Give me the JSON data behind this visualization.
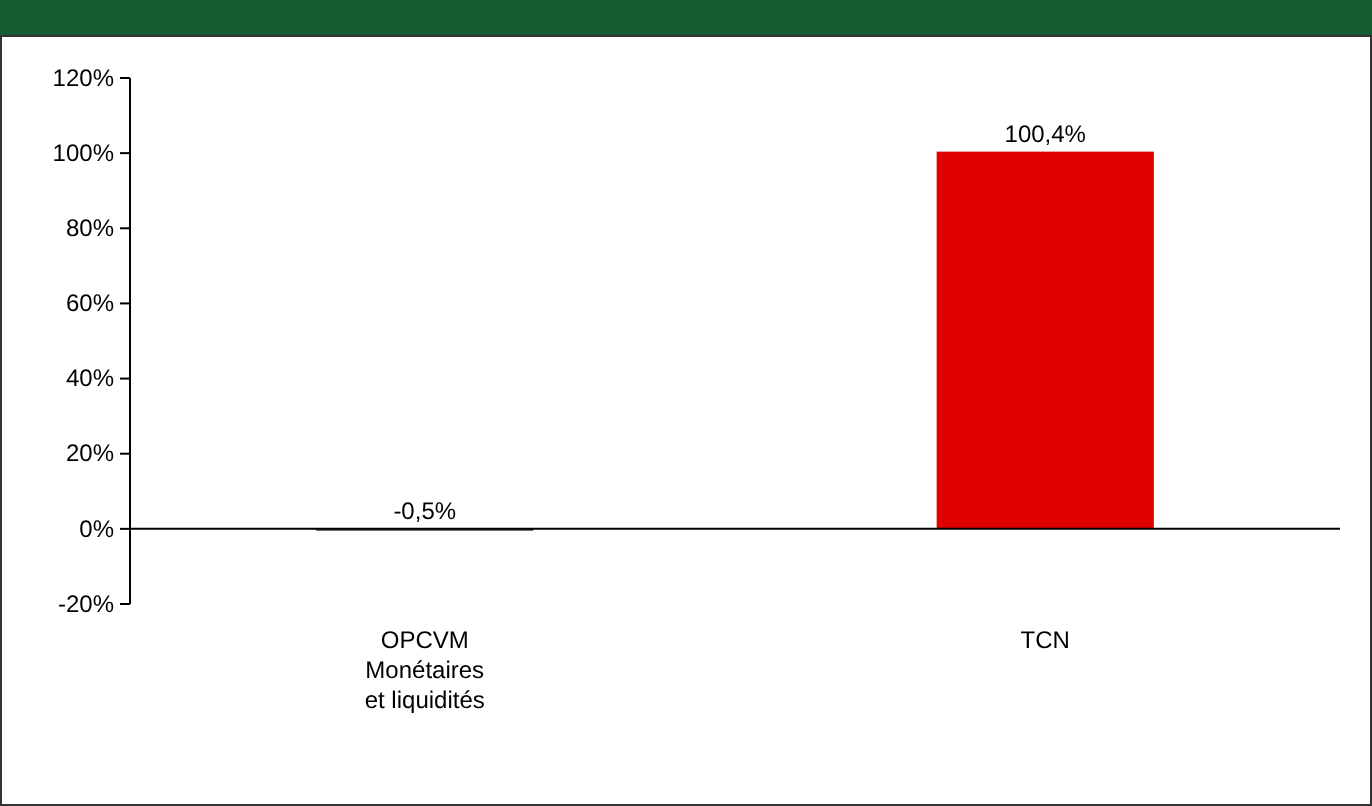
{
  "chart_data": {
    "type": "bar",
    "categories": [
      "OPCVM Monétaires et liquidités",
      "TCN"
    ],
    "values": [
      -0.5,
      100.4
    ],
    "colors": [
      "#404040",
      "#e00000"
    ],
    "value_labels": [
      "-0,5%",
      "100,4%"
    ],
    "ylim": [
      -20,
      120
    ],
    "yticks": [
      {
        "value": -20,
        "label": "-20%"
      },
      {
        "value": 0,
        "label": "0%"
      },
      {
        "value": 20,
        "label": "20%"
      },
      {
        "value": 40,
        "label": "40%"
      },
      {
        "value": 60,
        "label": "60%"
      },
      {
        "value": 80,
        "label": "80%"
      },
      {
        "value": 100,
        "label": "100%"
      },
      {
        "value": 120,
        "label": "120%"
      }
    ]
  }
}
